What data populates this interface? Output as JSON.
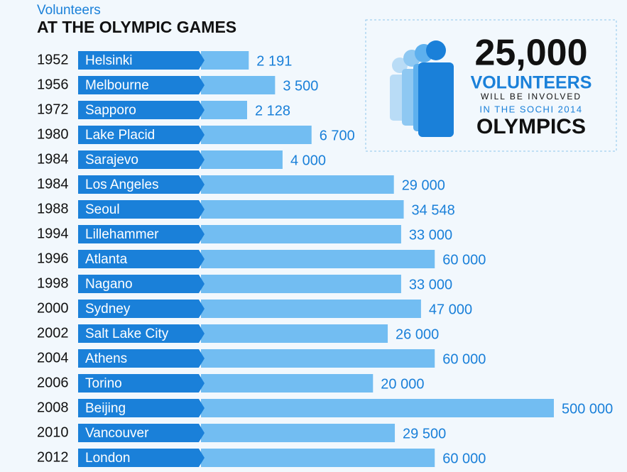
{
  "chart_data": {
    "type": "bar",
    "orientation": "horizontal",
    "log_scale": true,
    "subtitle": "Volunteers",
    "title": "AT THE OLYMPIC  GAMES",
    "years": [
      "1952",
      "1956",
      "1972",
      "1980",
      "1984",
      "1984",
      "1988",
      "1994",
      "1996",
      "1998",
      "2000",
      "2002",
      "2004",
      "2006",
      "2008",
      "2010",
      "2012"
    ],
    "categories": [
      "Helsinki",
      "Melbourne",
      "Sapporo",
      "Lake Placid",
      "Sarajevo",
      "Los Angeles",
      "Seoul",
      "Lillehammer",
      "Atlanta",
      "Nagano",
      "Sydney",
      "Salt Lake City",
      "Athens",
      "Torino",
      "Beijing",
      "Vancouver",
      "London"
    ],
    "values": [
      2191,
      3500,
      2128,
      6700,
      4000,
      29000,
      34548,
      33000,
      60000,
      33000,
      47000,
      26000,
      60000,
      20000,
      500000,
      29500,
      60000
    ],
    "value_labels": [
      "2 191",
      "3 500",
      "2 128",
      "6 700",
      "4 000",
      "29 000",
      "34 548",
      "33 000",
      "60 000",
      "33 000",
      "47 000",
      "26 000",
      "60 000",
      "20 000",
      "500 000",
      "29 500",
      "60 000"
    ],
    "color": "#72bdf2",
    "label_color": "#1a80d9",
    "annotations": [
      "25,000",
      "VOLUNTEERS",
      "WILL BE INVOLVED",
      "IN THE SOCHI 2014",
      "OLYMPICS"
    ]
  }
}
